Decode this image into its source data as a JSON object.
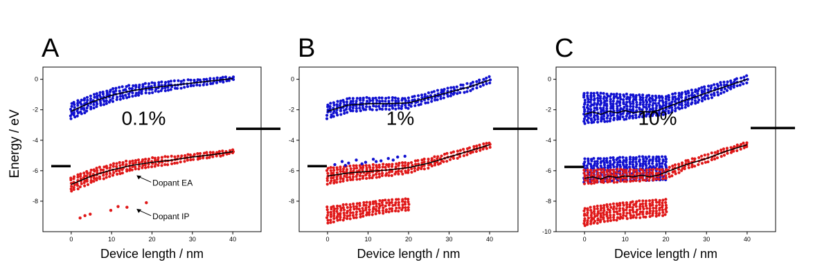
{
  "figure": {
    "ylabel": "Energy / eV",
    "colors": {
      "hole": "#1010d0",
      "electron": "#e01818",
      "mean": "#000000"
    }
  },
  "chart_data": [
    {
      "type": "scatter",
      "panel_label": "A",
      "annotation": "0.1%",
      "xlabel": "Device length / nm",
      "ylabel": "Energy / eV",
      "xlim": [
        -7,
        47
      ],
      "ylim": [
        -10,
        0.8
      ],
      "xticks": [
        0,
        10,
        20,
        30,
        40
      ],
      "yticks": [
        0,
        -2,
        -4,
        -6,
        -8
      ],
      "grid": false,
      "mean_lines": {
        "upper": {
          "x": [
            0,
            5,
            10,
            15,
            20,
            25,
            30,
            35,
            40
          ],
          "y": [
            -2.1,
            -1.5,
            -1.05,
            -0.75,
            -0.55,
            -0.4,
            -0.25,
            -0.1,
            0.05
          ]
        },
        "lower": {
          "x": [
            0,
            5,
            10,
            15,
            20,
            25,
            30,
            35,
            40
          ],
          "y": [
            -6.9,
            -6.35,
            -5.95,
            -5.65,
            -5.45,
            -5.3,
            -5.1,
            -4.95,
            -4.75
          ]
        }
      },
      "series": [
        {
          "role": "host-hole",
          "color": "#1010d0",
          "x_range": [
            0,
            40
          ],
          "spread": [
            0.5,
            0.1
          ],
          "center": {
            "x": [
              0,
              5,
              10,
              15,
              20,
              25,
              30,
              35,
              40
            ],
            "y": [
              -2.1,
              -1.5,
              -1.05,
              -0.75,
              -0.55,
              -0.4,
              -0.25,
              -0.1,
              0.05
            ]
          }
        },
        {
          "role": "host-electron",
          "color": "#e01818",
          "x_range": [
            0,
            40
          ],
          "spread": [
            0.45,
            0.1
          ],
          "center": {
            "x": [
              0,
              5,
              10,
              15,
              20,
              25,
              30,
              35,
              40
            ],
            "y": [
              -6.9,
              -6.35,
              -5.95,
              -5.65,
              -5.45,
              -5.3,
              -5.1,
              -4.95,
              -4.75
            ]
          }
        }
      ],
      "dopant_ea_points": {
        "x": [],
        "y": []
      },
      "dopant_ip_points": {
        "x": [
          2.2,
          3.4,
          4.7,
          9.8,
          11.6,
          13.8,
          18.6
        ],
        "y": [
          -9.1,
          -8.95,
          -8.85,
          -8.6,
          -8.35,
          -8.4,
          -8.1
        ]
      },
      "electrode_levels": [
        {
          "side": "left",
          "y": -5.7
        },
        {
          "side": "right",
          "y": -3.25
        }
      ],
      "callouts": [
        {
          "text": "Dopant EA",
          "point": [
            16,
            -6.3
          ]
        },
        {
          "text": "Dopant IP",
          "point": [
            16,
            -8.5
          ]
        }
      ]
    },
    {
      "type": "scatter",
      "panel_label": "B",
      "annotation": "1%",
      "xlabel": "Device length / nm",
      "ylabel": "",
      "xlim": [
        -7,
        47
      ],
      "ylim": [
        -10,
        0.8
      ],
      "xticks": [
        0,
        10,
        20,
        30,
        40
      ],
      "yticks": [
        0,
        -2,
        -4,
        -6,
        -8
      ],
      "grid": false,
      "mean_lines": {
        "upper": {
          "x": [
            0,
            5,
            10,
            15,
            20,
            25,
            30,
            35,
            40
          ],
          "y": [
            -2.1,
            -1.7,
            -1.6,
            -1.6,
            -1.55,
            -1.2,
            -0.85,
            -0.5,
            -0.05
          ]
        },
        "lower": {
          "x": [
            0,
            5,
            10,
            15,
            20,
            25,
            30,
            35,
            40
          ],
          "y": [
            -6.35,
            -6.15,
            -6.05,
            -5.95,
            -5.8,
            -5.5,
            -5.1,
            -4.7,
            -4.3
          ]
        }
      },
      "series": [
        {
          "role": "host-hole",
          "color": "#1010d0",
          "x_range": [
            0,
            40
          ],
          "spread": [
            0.45,
            0.2
          ],
          "center": {
            "x": [
              0,
              5,
              10,
              15,
              20,
              25,
              30,
              35,
              40
            ],
            "y": [
              -2.1,
              -1.7,
              -1.6,
              -1.6,
              -1.55,
              -1.2,
              -0.85,
              -0.5,
              -0.05
            ]
          }
        },
        {
          "role": "host-electron",
          "color": "#e01818",
          "x_range": [
            0,
            40
          ],
          "spread": [
            0.5,
            0.15
          ],
          "center": {
            "x": [
              0,
              5,
              10,
              15,
              20,
              25,
              30,
              35,
              40
            ],
            "y": [
              -6.35,
              -6.15,
              -6.05,
              -5.95,
              -5.8,
              -5.5,
              -5.1,
              -4.7,
              -4.3
            ]
          }
        },
        {
          "role": "dopant-ip",
          "color": "#e01818",
          "x_range": [
            0,
            20
          ],
          "spread": [
            0.5,
            0.35
          ],
          "center": {
            "x": [
              0,
              5,
              10,
              15,
              20
            ],
            "y": [
              -8.9,
              -8.7,
              -8.5,
              -8.3,
              -8.2
            ]
          }
        }
      ],
      "dopant_ea_points": {
        "x": [
          1.8,
          3.6,
          5.2,
          7.1,
          9.4,
          11.3,
          13.2,
          15.0,
          17.3,
          19.1,
          4.4,
          8.5,
          12.0,
          16.2
        ],
        "y": [
          -5.6,
          -5.4,
          -5.5,
          -5.3,
          -5.45,
          -5.25,
          -5.35,
          -5.2,
          -5.1,
          -5.05,
          -5.65,
          -5.55,
          -5.4,
          -5.3
        ]
      },
      "dopant_ip_points": {
        "x": [],
        "y": []
      },
      "electrode_levels": [
        {
          "side": "left",
          "y": -5.7
        },
        {
          "side": "right",
          "y": -3.25
        }
      ],
      "callouts": []
    },
    {
      "type": "scatter",
      "panel_label": "C",
      "annotation": "10%",
      "xlabel": "Device length / nm",
      "ylabel": "",
      "xlim": [
        -7,
        47
      ],
      "ylim": [
        -10,
        0.8
      ],
      "xticks": [
        0,
        10,
        20,
        30,
        40
      ],
      "yticks": [
        0,
        -2,
        -4,
        -6,
        -8,
        -10
      ],
      "grid": false,
      "mean_lines": {
        "upper": {
          "x": [
            0,
            2,
            4,
            6,
            8,
            10,
            12,
            14,
            16,
            18,
            20,
            25,
            30,
            35,
            40
          ],
          "y": [
            -2.3,
            -2.15,
            -2.3,
            -2.1,
            -2.2,
            -2.05,
            -2.2,
            -2.1,
            -2.15,
            -2.05,
            -1.85,
            -1.35,
            -0.9,
            -0.45,
            0.0
          ]
        },
        "lower": {
          "x": [
            0,
            2,
            4,
            6,
            8,
            10,
            12,
            14,
            16,
            18,
            20,
            25,
            30,
            35,
            40
          ],
          "y": [
            -6.5,
            -6.4,
            -6.55,
            -6.35,
            -6.45,
            -6.35,
            -6.4,
            -6.3,
            -6.4,
            -6.3,
            -6.1,
            -5.6,
            -5.2,
            -4.7,
            -4.3
          ]
        }
      },
      "series": [
        {
          "role": "host-hole",
          "color": "#1010d0",
          "x_range": [
            0,
            40
          ],
          "spread": [
            1.0,
            0.2
          ],
          "center": {
            "x": [
              0,
              5,
              10,
              15,
              20,
              25,
              30,
              35,
              40
            ],
            "y": [
              -1.9,
              -1.85,
              -1.8,
              -1.75,
              -1.7,
              -1.3,
              -0.9,
              -0.45,
              0.0
            ]
          }
        },
        {
          "role": "dopant-ea",
          "color": "#1010d0",
          "x_range": [
            0,
            20
          ],
          "spread": [
            0.75,
            0.75
          ],
          "center": {
            "x": [
              0,
              5,
              10,
              15,
              20
            ],
            "y": [
              -6.0,
              -5.95,
              -5.9,
              -5.85,
              -5.85
            ]
          }
        },
        {
          "role": "host-electron",
          "color": "#e01818",
          "x_range": [
            0,
            40
          ],
          "spread": [
            0.45,
            0.15
          ],
          "center": {
            "x": [
              0,
              5,
              10,
              15,
              20,
              25,
              30,
              35,
              40
            ],
            "y": [
              -6.4,
              -6.35,
              -6.3,
              -6.3,
              -6.2,
              -5.6,
              -5.2,
              -4.7,
              -4.3
            ]
          }
        },
        {
          "role": "dopant-ip",
          "color": "#e01818",
          "x_range": [
            0,
            20
          ],
          "spread": [
            0.55,
            0.5
          ],
          "center": {
            "x": [
              0,
              5,
              10,
              15,
              20
            ],
            "y": [
              -9.05,
              -8.8,
              -8.6,
              -8.5,
              -8.4
            ]
          }
        }
      ],
      "dopant_ea_points": {
        "x": [],
        "y": []
      },
      "dopant_ip_points": {
        "x": [],
        "y": []
      },
      "electrode_levels": [
        {
          "side": "left",
          "y": -5.75
        },
        {
          "side": "right",
          "y": -3.2
        }
      ],
      "callouts": []
    }
  ]
}
